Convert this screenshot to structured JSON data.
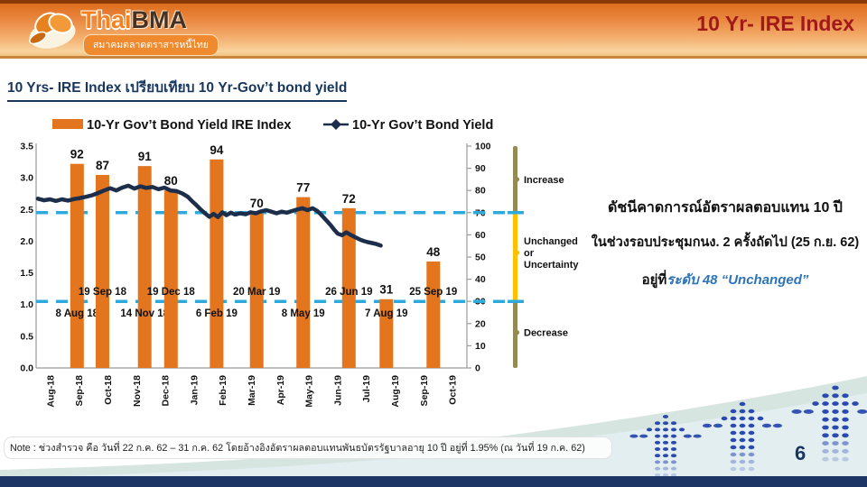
{
  "header": {
    "title": "10 Yr- IRE Index",
    "logo": {
      "brand_thai": "Thai",
      "brand_bma": "BMA",
      "tagline": "สมาคมตลาดตราสารหนี้ไทย"
    }
  },
  "subtitle": "10 Yrs- IRE Index เปรียบเทียบ 10 Yr-Gov’t bond yield",
  "chart_data": {
    "type": "bar+line",
    "legend": [
      {
        "label": "10-Yr Gov’t Bond Yield IRE Index",
        "swatch": "bar"
      },
      {
        "label": "10-Yr Gov’t Bond Yield",
        "swatch": "line"
      }
    ],
    "x_categories": [
      "Aug-18",
      "Sep-18",
      "Oct-18",
      "Nov-18",
      "Dec-18",
      "Jan-19",
      "Feb-19",
      "Mar-19",
      "Apr-19",
      "May-19",
      "Jun-19",
      "Jul-19",
      "Aug-19",
      "Sep-19",
      "Oct-19"
    ],
    "left_axis": {
      "min": 0,
      "max": 3.5,
      "step": 0.5,
      "decimals": 1
    },
    "right_axis": {
      "min": 0,
      "max": 100,
      "step": 10,
      "decimals": 0
    },
    "bars": [
      {
        "survey_date": "8 Aug 18",
        "value": 92,
        "x_frac": 0.095,
        "date_label_position": "below"
      },
      {
        "survey_date": "19 Sep 18",
        "value": 87,
        "x_frac": 0.154,
        "date_label_position": "above"
      },
      {
        "survey_date": "14 Nov 18",
        "value": 91,
        "x_frac": 0.252,
        "date_label_position": "below"
      },
      {
        "survey_date": "19 Dec 18",
        "value": 80,
        "x_frac": 0.313,
        "date_label_position": "above"
      },
      {
        "survey_date": "6 Feb 19",
        "value": 94,
        "x_frac": 0.419,
        "date_label_position": "below"
      },
      {
        "survey_date": "20 Mar 19",
        "value": 70,
        "x_frac": 0.512,
        "date_label_position": "above"
      },
      {
        "survey_date": "8 May 19",
        "value": 77,
        "x_frac": 0.62,
        "date_label_position": "below"
      },
      {
        "survey_date": "26 Jun 19",
        "value": 72,
        "x_frac": 0.726,
        "date_label_position": "above"
      },
      {
        "survey_date": "7 Aug 19",
        "value": 31,
        "x_frac": 0.813,
        "date_label_position": "below"
      },
      {
        "survey_date": "25 Sep 19",
        "value": 48,
        "x_frac": 0.922,
        "date_label_position": "above"
      }
    ],
    "yield_line": {
      "name": "10-Yr Gov’t Bond Yield",
      "points": [
        [
          0.004,
          2.67
        ],
        [
          0.018,
          2.645
        ],
        [
          0.032,
          2.66
        ],
        [
          0.046,
          2.635
        ],
        [
          0.06,
          2.66
        ],
        [
          0.074,
          2.64
        ],
        [
          0.088,
          2.665
        ],
        [
          0.102,
          2.68
        ],
        [
          0.116,
          2.7
        ],
        [
          0.13,
          2.725
        ],
        [
          0.144,
          2.76
        ],
        [
          0.158,
          2.8
        ],
        [
          0.172,
          2.835
        ],
        [
          0.186,
          2.8
        ],
        [
          0.2,
          2.845
        ],
        [
          0.214,
          2.875
        ],
        [
          0.228,
          2.83
        ],
        [
          0.242,
          2.865
        ],
        [
          0.256,
          2.84
        ],
        [
          0.27,
          2.855
        ],
        [
          0.284,
          2.82
        ],
        [
          0.298,
          2.845
        ],
        [
          0.312,
          2.8
        ],
        [
          0.326,
          2.79
        ],
        [
          0.34,
          2.75
        ],
        [
          0.352,
          2.7
        ],
        [
          0.362,
          2.63
        ],
        [
          0.372,
          2.57
        ],
        [
          0.382,
          2.5
        ],
        [
          0.392,
          2.44
        ],
        [
          0.402,
          2.385
        ],
        [
          0.412,
          2.43
        ],
        [
          0.422,
          2.38
        ],
        [
          0.432,
          2.455
        ],
        [
          0.442,
          2.41
        ],
        [
          0.452,
          2.45
        ],
        [
          0.462,
          2.42
        ],
        [
          0.474,
          2.44
        ],
        [
          0.486,
          2.425
        ],
        [
          0.498,
          2.455
        ],
        [
          0.51,
          2.44
        ],
        [
          0.522,
          2.47
        ],
        [
          0.534,
          2.49
        ],
        [
          0.546,
          2.465
        ],
        [
          0.558,
          2.44
        ],
        [
          0.57,
          2.465
        ],
        [
          0.582,
          2.45
        ],
        [
          0.594,
          2.475
        ],
        [
          0.606,
          2.5
        ],
        [
          0.618,
          2.52
        ],
        [
          0.63,
          2.49
        ],
        [
          0.642,
          2.52
        ],
        [
          0.652,
          2.48
        ],
        [
          0.66,
          2.43
        ],
        [
          0.668,
          2.37
        ],
        [
          0.676,
          2.31
        ],
        [
          0.684,
          2.25
        ],
        [
          0.692,
          2.18
        ],
        [
          0.7,
          2.12
        ],
        [
          0.71,
          2.095
        ],
        [
          0.72,
          2.14
        ],
        [
          0.73,
          2.1
        ],
        [
          0.74,
          2.065
        ],
        [
          0.75,
          2.03
        ],
        [
          0.76,
          2.005
        ],
        [
          0.77,
          1.985
        ],
        [
          0.78,
          1.97
        ],
        [
          0.79,
          1.955
        ],
        [
          0.8,
          1.93
        ]
      ]
    },
    "reference_lines": [
      {
        "value": 70
      },
      {
        "value": 30
      }
    ],
    "indicator": {
      "zones": [
        {
          "from": 70,
          "to": 100,
          "color": "olive",
          "label_lines": [
            "Increase"
          ],
          "label_at": 85
        },
        {
          "from": 30,
          "to": 70,
          "color": "yellow",
          "label_lines": [
            "Unchanged",
            "or",
            "Uncertainty"
          ],
          "label_at": 52
        },
        {
          "from": 0,
          "to": 30,
          "color": "olive",
          "label_lines": [
            "Decrease"
          ],
          "label_at": 16
        }
      ]
    }
  },
  "annotation": {
    "line1": "ดัชนีคาดการณ์อัตราผลตอบแทน 10 ปี",
    "line2": "ในช่วงรอบประชุมกนง. 2 ครั้งถัดไป (25 ก.ย. 62)",
    "line3_black": "อยู่ที่",
    "line3_blue": "ระดับ 48 “Unchanged”"
  },
  "note": "Note : ช่วงสำรวจ คือ วันที่ 22 ก.ค. 62 – 31 ก.ค. 62 โดยอ้างอิงอัตราผลตอบแทนพันธบัตรรัฐบาลอายุ  10 ปี อยู่ที่ 1.95% (ณ วันที่ 19 ก.ค. 62)",
  "page_number": "6",
  "colors": {
    "bar_orange": "#e2751e",
    "line_navy": "#1c2e4a",
    "dashed_cyan": "#2fa8dc",
    "olive": "#948a54",
    "yellow": "#ffc000",
    "axis_gray": "#9b9b9b",
    "arrow_blue": "#2b4aae",
    "wave_back": "#d7e5e1",
    "wave_front": "#e4eef3"
  }
}
